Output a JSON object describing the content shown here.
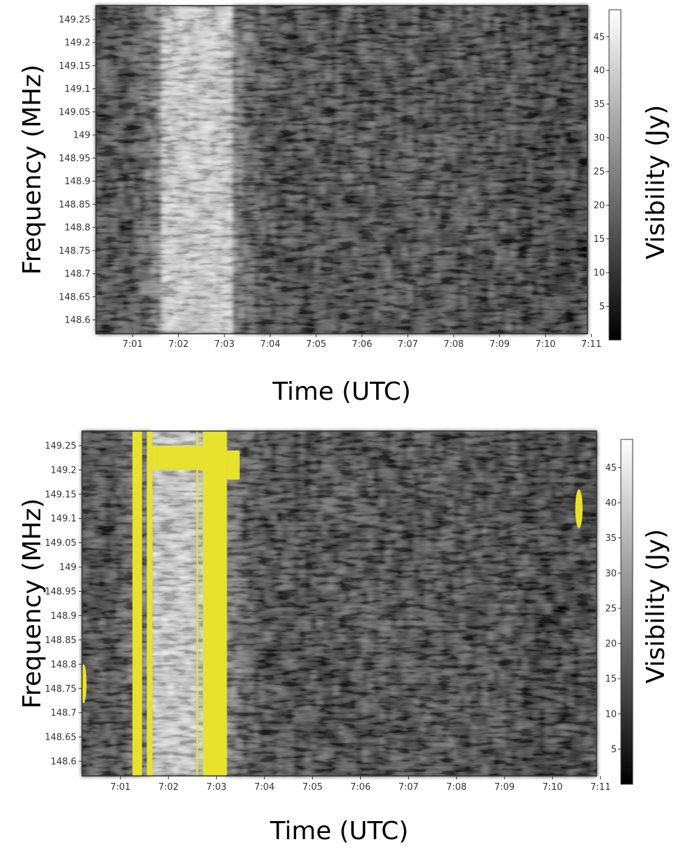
{
  "chart_data": [
    {
      "type": "heatmap",
      "xlabel": "Time (UTC)",
      "ylabel": "Frequency (MHz)",
      "x_tick_labels": [
        "7:01",
        "7:02",
        "7:03",
        "7:04",
        "7:05",
        "7:06",
        "7:07",
        "7:08",
        "7:09",
        "7:10",
        "7:11"
      ],
      "y_tick_labels": [
        "149.25",
        "149.2",
        "149.15",
        "149.1",
        "149.05",
        "149",
        "148.95",
        "148.9",
        "148.85",
        "148.8",
        "148.75",
        "148.7",
        "148.65",
        "148.6"
      ],
      "xlim": [
        "7:00:12",
        "7:10:55"
      ],
      "ylim": [
        148.57,
        149.28
      ],
      "colorbar": {
        "label": "Visibility (Jy)",
        "ticks": [
          "5",
          "10",
          "15",
          "20",
          "25",
          "30",
          "35",
          "40",
          "45"
        ],
        "range": [
          0,
          49
        ],
        "colormap": "gray"
      },
      "bright_band": {
        "time_start": "7:01:35",
        "time_end": "7:03:10",
        "visibility_approx": 45
      },
      "background_visibility_approx": [
        5,
        20
      ]
    },
    {
      "type": "heatmap",
      "xlabel": "Time (UTC)",
      "ylabel": "Frequency (MHz)",
      "x_tick_labels": [
        "7:01",
        "7:02",
        "7:03",
        "7:04",
        "7:05",
        "7:06",
        "7:07",
        "7:08",
        "7:09",
        "7:10",
        "7:11"
      ],
      "y_tick_labels": [
        "149.25",
        "149.2",
        "149.15",
        "149.1",
        "149.05",
        "149",
        "148.95",
        "148.9",
        "148.85",
        "148.8",
        "148.75",
        "148.7",
        "148.65",
        "148.6"
      ],
      "xlim": [
        "7:00:12",
        "7:10:55"
      ],
      "ylim": [
        148.57,
        149.28
      ],
      "colorbar": {
        "label": "Visibility (Jy)",
        "ticks": [
          "5",
          "10",
          "15",
          "20",
          "25",
          "30",
          "35",
          "40",
          "45"
        ],
        "range": [
          0,
          49
        ],
        "colormap": "gray"
      },
      "bright_band": {
        "time_start": "7:01:35",
        "time_end": "7:03:10",
        "visibility_approx": 45
      },
      "flag_color": "#E6E22E",
      "flagged_regions": [
        {
          "time_start": "7:01:15",
          "time_end": "7:01:27",
          "freq_start": 148.57,
          "freq_end": 149.28
        },
        {
          "time_start": "7:01:33",
          "time_end": "7:01:40",
          "freq_start": 148.57,
          "freq_end": 149.28
        },
        {
          "time_start": "7:02:35",
          "time_end": "7:02:37",
          "freq_start": 148.57,
          "freq_end": 149.28
        },
        {
          "time_start": "7:02:43",
          "time_end": "7:03:13",
          "freq_start": 148.57,
          "freq_end": 149.28
        },
        {
          "time_start": "7:01:40",
          "time_end": "7:03:13",
          "freq_start": 149.2,
          "freq_end": 149.25
        },
        {
          "time_start": "7:03:13",
          "time_end": "7:03:29",
          "freq_start": 149.18,
          "freq_end": 149.24
        },
        {
          "time_start": "7:00:13",
          "time_end": "7:00:15",
          "freq_start": 148.72,
          "freq_end": 148.8
        },
        {
          "time_start": "7:10:31",
          "time_end": "7:10:35",
          "freq_start": 149.08,
          "freq_end": 149.16
        }
      ]
    }
  ]
}
